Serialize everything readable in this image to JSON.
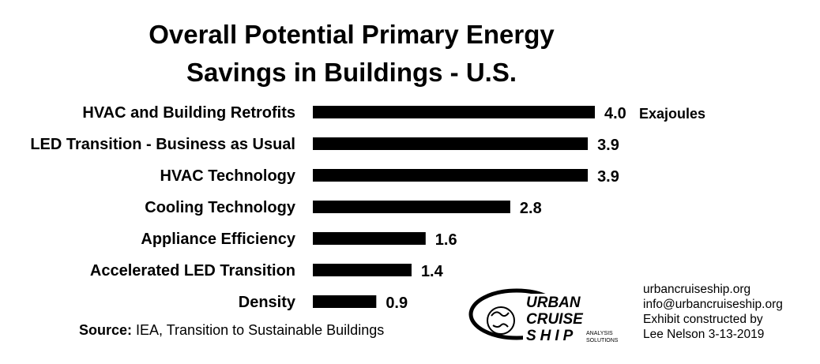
{
  "chart_data": {
    "type": "bar",
    "orientation": "horizontal",
    "title_lines": [
      "Overall Potential Primary Energy",
      "Savings in Buildings - U.S."
    ],
    "categories": [
      "HVAC and Building Retrofits",
      "LED Transition - Business as Usual",
      "HVAC Technology",
      "Cooling Technology",
      "Appliance Efficiency",
      "Accelerated LED Transition",
      "Density"
    ],
    "values": [
      4.0,
      3.9,
      3.9,
      2.8,
      1.6,
      1.4,
      0.9
    ],
    "value_labels": [
      "4.0",
      "3.9",
      "3.9",
      "2.8",
      "1.6",
      "1.4",
      "0.9"
    ],
    "unit_label": "Exajoules",
    "xlim": [
      0,
      4.0
    ],
    "grid": false,
    "bar_color": "#000000"
  },
  "source": {
    "prefix": "Source:",
    "text": " IEA, Transition to Sustainable Buildings"
  },
  "credits": {
    "line1": "urbancruiseship.org",
    "line2": "info@urbancruiseship.org",
    "line3": "Exhibit constructed by",
    "line4": "Lee Nelson 3-13-2019"
  },
  "logo": {
    "line1": "URBAN",
    "line2": "CRUISE",
    "line3": "SHIP",
    "tag1": "ANALYSIS",
    "tag2": "SOLUTIONS"
  }
}
